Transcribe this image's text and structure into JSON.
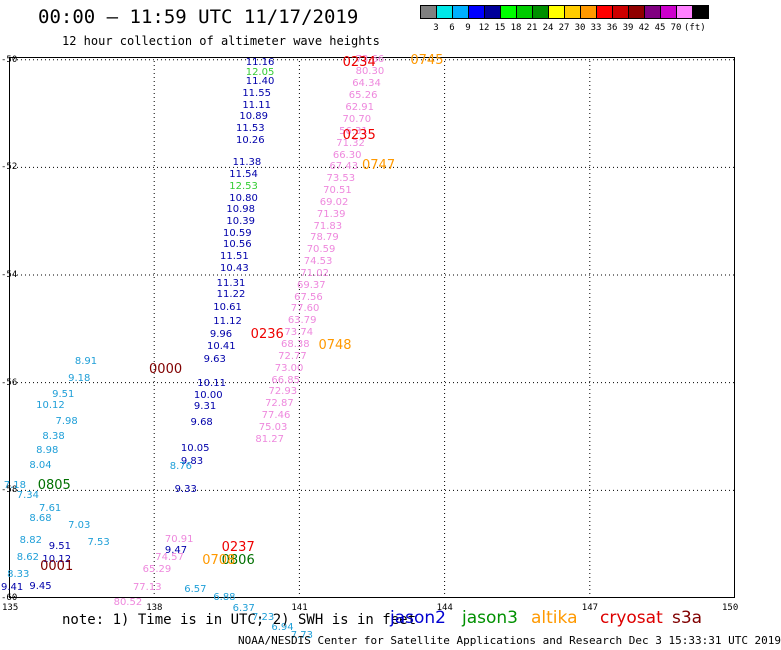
{
  "header": {
    "title": "00:00 – 11:59 UTC 11/17/2019",
    "subtitle": "12 hour collection of altimeter wave heights"
  },
  "legend": {
    "colors": [
      "#808080",
      "#00e8e8",
      "#00b0ff",
      "#0000ff",
      "#00009a",
      "#00ff00",
      "#00cc00",
      "#009000",
      "#ffff00",
      "#ffcc00",
      "#ff9900",
      "#ff0000",
      "#cc0000",
      "#900000",
      "#800080",
      "#cc00cc",
      "#ff80ff",
      "#000000"
    ],
    "labels": [
      "3",
      "6",
      "9",
      "12",
      "15",
      "18",
      "21",
      "24",
      "27",
      "30",
      "33",
      "36",
      "39",
      "42",
      "45",
      "70",
      "(ft)"
    ]
  },
  "axes": {
    "y_labels": [
      "-50",
      "-52",
      "-54",
      "-56",
      "-58",
      "-60"
    ],
    "x_labels": [
      "135",
      "138",
      "141",
      "144",
      "147",
      "150"
    ]
  },
  "footer": {
    "note": "note: 1) Time is in UTC; 2) SWH is in feet",
    "credit": "NOAA/NESDIS Center for Satellite Applications and Research   Dec  3 15:33:31 UTC 2019"
  },
  "satellites": [
    {
      "name": "jason2",
      "color": "#0000d0"
    },
    {
      "name": "jason3",
      "color": "#009000"
    },
    {
      "name": "altika",
      "color": "#ff9900"
    },
    {
      "name": "cryosat",
      "color": "#dd0000"
    },
    {
      "name": "s3a",
      "color": "#800000"
    }
  ],
  "map_data": {
    "type": "altimeter_swh_track",
    "units": "ft",
    "lon_range": [
      135,
      150
    ],
    "lat_range": [
      -60,
      -49.95
    ],
    "pass_times": [
      {
        "label": "0234",
        "lon": 142.1,
        "lat": -50.05,
        "color": "#ee0000"
      },
      {
        "label": "0235",
        "lon": 142.1,
        "lat": -51.4,
        "color": "#ee0000"
      },
      {
        "label": "0236",
        "lon": 140.2,
        "lat": -55.1,
        "color": "#ee0000"
      },
      {
        "label": "0237",
        "lon": 139.6,
        "lat": -59.05,
        "color": "#ee0000"
      },
      {
        "label": "0745",
        "lon": 143.5,
        "lat": -50.0,
        "color": "#ff9900"
      },
      {
        "label": "0747",
        "lon": 142.5,
        "lat": -51.95,
        "color": "#ff9900"
      },
      {
        "label": "0748",
        "lon": 141.6,
        "lat": -55.3,
        "color": "#ff9900"
      },
      {
        "label": "0000",
        "lon": 138.1,
        "lat": -55.75,
        "color": "#800000"
      },
      {
        "label": "0001",
        "lon": 135.85,
        "lat": -59.4,
        "color": "#800000"
      },
      {
        "label": "0805",
        "lon": 135.8,
        "lat": -57.9,
        "color": "#007000"
      },
      {
        "label": "0806",
        "lon": 139.6,
        "lat": -59.3,
        "color": "#007000"
      },
      {
        "label": "0708",
        "lon": 139.2,
        "lat": -59.3,
        "color": "#ff9900"
      }
    ],
    "tracks": [
      {
        "name": "jason2",
        "color": "#0000aa",
        "points": [
          {
            "lon": 140.18,
            "lat": -50.06,
            "swh": "11.16"
          },
          {
            "lon": 140.18,
            "lat": -50.42,
            "swh": "11.40"
          },
          {
            "lon": 140.11,
            "lat": -50.64,
            "swh": "11.55"
          },
          {
            "lon": 140.11,
            "lat": -50.86,
            "swh": "11.11"
          },
          {
            "lon": 140.05,
            "lat": -51.07,
            "swh": "10.89"
          },
          {
            "lon": 139.98,
            "lat": -51.29,
            "swh": "11.53"
          },
          {
            "lon": 139.98,
            "lat": -51.51,
            "swh": "10.26"
          },
          {
            "lon": 139.91,
            "lat": -51.92,
            "swh": "11.38"
          },
          {
            "lon": 139.84,
            "lat": -52.14,
            "swh": "11.54"
          },
          {
            "lon": 139.84,
            "lat": -52.58,
            "swh": "10.80"
          },
          {
            "lon": 139.78,
            "lat": -52.79,
            "swh": "10.98"
          },
          {
            "lon": 139.78,
            "lat": -53.01,
            "swh": "10.39"
          },
          {
            "lon": 139.71,
            "lat": -53.23,
            "swh": "10.59"
          },
          {
            "lon": 139.71,
            "lat": -53.44,
            "swh": "10.56"
          },
          {
            "lon": 139.65,
            "lat": -53.66,
            "swh": "11.51"
          },
          {
            "lon": 139.65,
            "lat": -53.88,
            "swh": "10.43"
          },
          {
            "lon": 139.58,
            "lat": -54.17,
            "swh": "11.31"
          },
          {
            "lon": 139.58,
            "lat": -54.38,
            "swh": "11.22"
          },
          {
            "lon": 139.51,
            "lat": -54.62,
            "swh": "10.61"
          },
          {
            "lon": 139.51,
            "lat": -54.87,
            "swh": "11.12"
          },
          {
            "lon": 139.44,
            "lat": -55.11,
            "swh": "9.96"
          },
          {
            "lon": 139.38,
            "lat": -55.33,
            "swh": "10.41"
          },
          {
            "lon": 139.31,
            "lat": -55.57,
            "swh": "9.63"
          },
          {
            "lon": 139.18,
            "lat": -56.02,
            "swh": "10.11"
          },
          {
            "lon": 139.11,
            "lat": -56.24,
            "swh": "10.00"
          },
          {
            "lon": 139.11,
            "lat": -56.46,
            "swh": "9.31"
          },
          {
            "lon": 139.04,
            "lat": -56.74,
            "swh": "9.68"
          },
          {
            "lon": 138.84,
            "lat": -57.23,
            "swh": "10.05"
          },
          {
            "lon": 138.84,
            "lat": -57.48,
            "swh": "9.83"
          },
          {
            "lon": 138.71,
            "lat": -57.99,
            "swh": "9.33"
          },
          {
            "lon": 138.51,
            "lat": -59.12,
            "swh": "9.47"
          },
          {
            "lon": 136.11,
            "lat": -59.06,
            "swh": "9.51"
          },
          {
            "lon": 135.98,
            "lat": -59.3,
            "swh": "10.12"
          },
          {
            "lon": 135.71,
            "lat": -59.8,
            "swh": "9.45"
          },
          {
            "lon": 135.11,
            "lat": -59.82,
            "swh": "9.41"
          }
        ]
      },
      {
        "name": "jason3",
        "color": "#33cc33",
        "points": [
          {
            "lon": 140.18,
            "lat": -50.25,
            "swh": "12.05"
          },
          {
            "lon": 139.84,
            "lat": -52.36,
            "swh": "12.53"
          }
        ]
      },
      {
        "name": "track-lightblue",
        "color": "#1f9fd8",
        "points": [
          {
            "lon": 136.65,
            "lat": -55.62,
            "swh": "8.91"
          },
          {
            "lon": 136.51,
            "lat": -55.93,
            "swh": "9.18"
          },
          {
            "lon": 136.18,
            "lat": -56.23,
            "swh": "9.51"
          },
          {
            "lon": 135.85,
            "lat": -56.43,
            "swh": "10.12"
          },
          {
            "lon": 136.25,
            "lat": -56.73,
            "swh": "7.98"
          },
          {
            "lon": 135.98,
            "lat": -57.0,
            "swh": "8.38"
          },
          {
            "lon": 135.85,
            "lat": -57.27,
            "swh": "8.98"
          },
          {
            "lon": 135.71,
            "lat": -57.54,
            "swh": "8.04"
          },
          {
            "lon": 135.18,
            "lat": -57.92,
            "swh": "7.18"
          },
          {
            "lon": 135.45,
            "lat": -58.11,
            "swh": "7.34"
          },
          {
            "lon": 135.91,
            "lat": -58.35,
            "swh": "7.61"
          },
          {
            "lon": 135.71,
            "lat": -58.53,
            "swh": "8.68"
          },
          {
            "lon": 136.51,
            "lat": -58.66,
            "swh": "7.03"
          },
          {
            "lon": 135.51,
            "lat": -58.95,
            "swh": "8.82"
          },
          {
            "lon": 136.91,
            "lat": -58.98,
            "swh": "7.53"
          },
          {
            "lon": 135.45,
            "lat": -59.25,
            "swh": "8.62"
          },
          {
            "lon": 135.25,
            "lat": -59.58,
            "swh": "8.33"
          },
          {
            "lon": 138.91,
            "lat": -59.85,
            "swh": "6.57"
          },
          {
            "lon": 139.51,
            "lat": -60.0,
            "swh": "6.88"
          },
          {
            "lon": 139.91,
            "lat": -60.21,
            "swh": "6.37"
          },
          {
            "lon": 140.31,
            "lat": -60.38,
            "swh": "7.23"
          },
          {
            "lon": 140.71,
            "lat": -60.55,
            "swh": "6.94"
          },
          {
            "lon": 141.11,
            "lat": -60.7,
            "swh": "7.73"
          },
          {
            "lon": 138.61,
            "lat": -57.56,
            "swh": "8.76"
          }
        ]
      },
      {
        "name": "altika",
        "color": "#ee88dd",
        "points": [
          {
            "lon": 142.45,
            "lat": -50.0,
            "swh": "73.66"
          },
          {
            "lon": 142.45,
            "lat": -50.22,
            "swh": "80.30"
          },
          {
            "lon": 142.38,
            "lat": -50.46,
            "swh": "64.34"
          },
          {
            "lon": 142.31,
            "lat": -50.68,
            "swh": "65.26"
          },
          {
            "lon": 142.24,
            "lat": -50.9,
            "swh": "62.91"
          },
          {
            "lon": 142.18,
            "lat": -51.12,
            "swh": "70.70"
          },
          {
            "lon": 142.11,
            "lat": -51.34,
            "swh": "56.31"
          },
          {
            "lon": 142.05,
            "lat": -51.56,
            "swh": "71.32"
          },
          {
            "lon": 141.98,
            "lat": -51.78,
            "swh": "66.30"
          },
          {
            "lon": 141.91,
            "lat": -52.0,
            "swh": "67.43"
          },
          {
            "lon": 141.85,
            "lat": -52.22,
            "swh": "73.53"
          },
          {
            "lon": 141.78,
            "lat": -52.44,
            "swh": "70.51"
          },
          {
            "lon": 141.71,
            "lat": -52.66,
            "swh": "69.02"
          },
          {
            "lon": 141.65,
            "lat": -52.88,
            "swh": "71.39"
          },
          {
            "lon": 141.58,
            "lat": -53.1,
            "swh": "71.83"
          },
          {
            "lon": 141.51,
            "lat": -53.32,
            "swh": "78.79"
          },
          {
            "lon": 141.44,
            "lat": -53.54,
            "swh": "70.59"
          },
          {
            "lon": 141.38,
            "lat": -53.76,
            "swh": "74.53"
          },
          {
            "lon": 141.31,
            "lat": -53.98,
            "swh": "71.02"
          },
          {
            "lon": 141.24,
            "lat": -54.2,
            "swh": "69.37"
          },
          {
            "lon": 141.18,
            "lat": -54.42,
            "swh": "67.56"
          },
          {
            "lon": 141.11,
            "lat": -54.64,
            "swh": "77.60"
          },
          {
            "lon": 141.05,
            "lat": -54.86,
            "swh": "63.79"
          },
          {
            "lon": 140.98,
            "lat": -55.08,
            "swh": "73.74"
          },
          {
            "lon": 140.91,
            "lat": -55.3,
            "swh": "68.38"
          },
          {
            "lon": 140.85,
            "lat": -55.52,
            "swh": "72.77"
          },
          {
            "lon": 140.78,
            "lat": -55.74,
            "swh": "73.00"
          },
          {
            "lon": 140.71,
            "lat": -55.96,
            "swh": "66.85"
          },
          {
            "lon": 140.65,
            "lat": -56.18,
            "swh": "72.93"
          },
          {
            "lon": 140.58,
            "lat": -56.4,
            "swh": "72.87"
          },
          {
            "lon": 140.51,
            "lat": -56.62,
            "swh": "77.46"
          },
          {
            "lon": 140.45,
            "lat": -56.84,
            "swh": "75.03"
          },
          {
            "lon": 140.38,
            "lat": -57.06,
            "swh": "81.27"
          },
          {
            "lon": 138.51,
            "lat": -58.92,
            "swh": "70.91"
          },
          {
            "lon": 138.31,
            "lat": -59.25,
            "swh": "74.57"
          },
          {
            "lon": 138.05,
            "lat": -59.48,
            "swh": "65.29"
          },
          {
            "lon": 137.85,
            "lat": -59.82,
            "swh": "77.13"
          },
          {
            "lon": 137.45,
            "lat": -60.1,
            "swh": "80.52"
          }
        ]
      }
    ]
  }
}
